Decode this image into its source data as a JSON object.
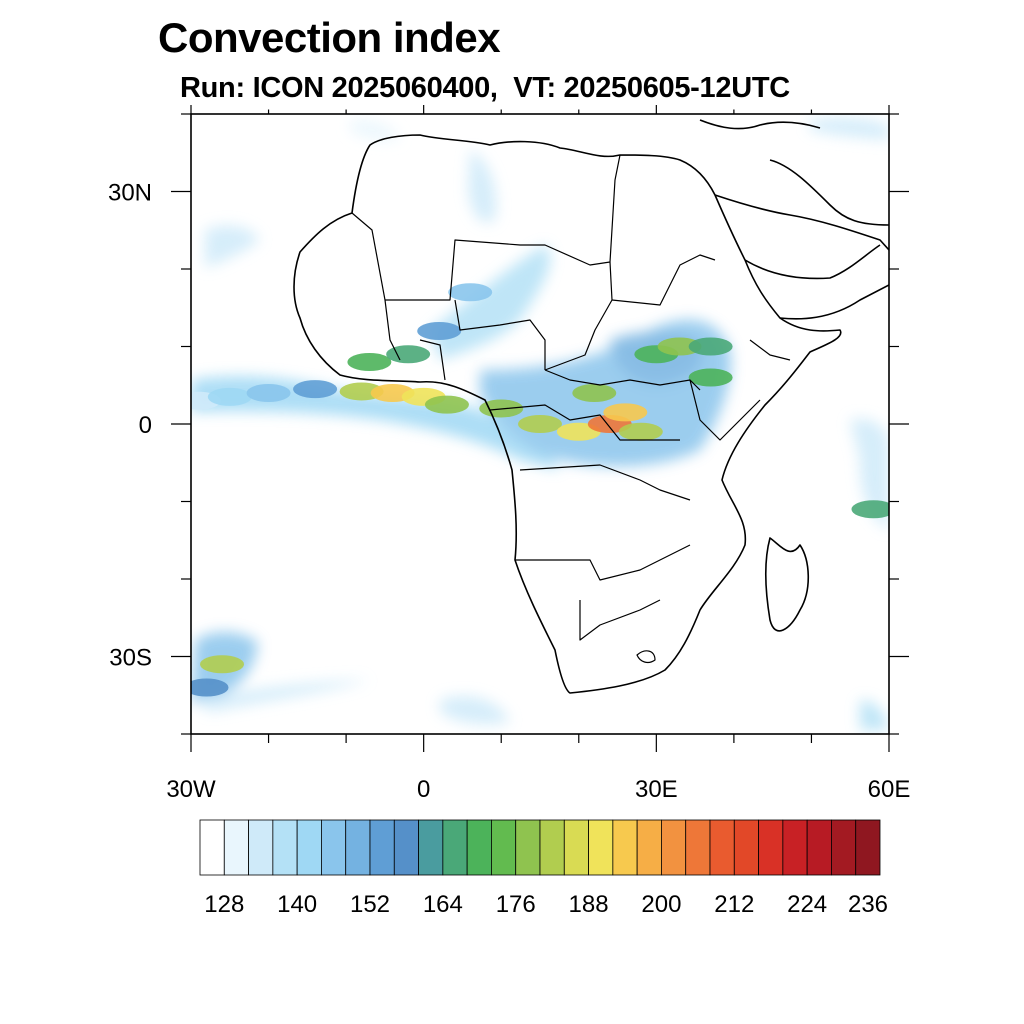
{
  "header": {
    "title": "Convection index",
    "subtitle": "Run: ICON 2025060400,  VT: 20250605-12UTC"
  },
  "axes": {
    "x_ticks": [
      {
        "lon": -30,
        "label": "30W"
      },
      {
        "lon": 0,
        "label": "0"
      },
      {
        "lon": 30,
        "label": "30E"
      },
      {
        "lon": 60,
        "label": "60E"
      }
    ],
    "y_ticks": [
      {
        "lat": 30,
        "label": "30N"
      },
      {
        "lat": 0,
        "label": "0"
      },
      {
        "lat": -30,
        "label": "30S"
      }
    ],
    "lon_range": [
      -30,
      60
    ],
    "lat_range": [
      -40,
      40
    ],
    "minor_lon_step": 10,
    "minor_lat_step": 10
  },
  "colorbar": {
    "colors": [
      "#ffffff",
      "#e9f6fd",
      "#cfeaf9",
      "#b4e1f6",
      "#9fd8f4",
      "#8ac5ec",
      "#74b2e1",
      "#5f9ed5",
      "#5590c9",
      "#4a9c9f",
      "#4aa878",
      "#4cb35a",
      "#62bb4f",
      "#8fc34f",
      "#b1cd4f",
      "#d9db53",
      "#f0e35a",
      "#f7c94e",
      "#f6ae46",
      "#f29240",
      "#ee7738",
      "#e95b2f",
      "#e24828",
      "#d93126",
      "#c82125",
      "#b71b24",
      "#a31a22",
      "#8f1720"
    ],
    "labels": [
      "128",
      "140",
      "152",
      "164",
      "176",
      "188",
      "200",
      "212",
      "224",
      "236"
    ],
    "label_positions": [
      1,
      4,
      7,
      10,
      13,
      16,
      19,
      22,
      25,
      28
    ]
  },
  "map": {
    "coastline_color": "#000000",
    "convection_cells": [
      {
        "lon": -29,
        "lat": 3,
        "value": 128
      },
      {
        "lon": -25,
        "lat": 3.5,
        "value": 134
      },
      {
        "lon": -20,
        "lat": 4,
        "value": 140
      },
      {
        "lon": -14,
        "lat": 4.5,
        "value": 146
      },
      {
        "lon": -8,
        "lat": 4.2,
        "value": 176
      },
      {
        "lon": -4,
        "lat": 4.0,
        "value": 188
      },
      {
        "lon": 0,
        "lat": 3.5,
        "value": 182
      },
      {
        "lon": 3,
        "lat": 2.5,
        "value": 170
      },
      {
        "lon": -7,
        "lat": 8,
        "value": 164
      },
      {
        "lon": -2,
        "lat": 9,
        "value": 158
      },
      {
        "lon": 2,
        "lat": 12,
        "value": 146
      },
      {
        "lon": 6,
        "lat": 17,
        "value": 140
      },
      {
        "lon": 10,
        "lat": 2,
        "value": 170
      },
      {
        "lon": 15,
        "lat": 0,
        "value": 176
      },
      {
        "lon": 20,
        "lat": -1,
        "value": 182
      },
      {
        "lon": 24,
        "lat": 0,
        "value": 200
      },
      {
        "lon": 26,
        "lat": 1.5,
        "value": 188
      },
      {
        "lon": 22,
        "lat": 4,
        "value": 170
      },
      {
        "lon": 28,
        "lat": -1,
        "value": 176
      },
      {
        "lon": 30,
        "lat": 9,
        "value": 164
      },
      {
        "lon": 33,
        "lat": 10,
        "value": 170
      },
      {
        "lon": 37,
        "lat": 10,
        "value": 158
      },
      {
        "lon": 37,
        "lat": 6,
        "value": 164
      },
      {
        "lon": -26,
        "lat": -31,
        "value": 176
      },
      {
        "lon": -28,
        "lat": -34,
        "value": 152
      },
      {
        "lon": 58,
        "lat": -11,
        "value": 158
      }
    ]
  }
}
